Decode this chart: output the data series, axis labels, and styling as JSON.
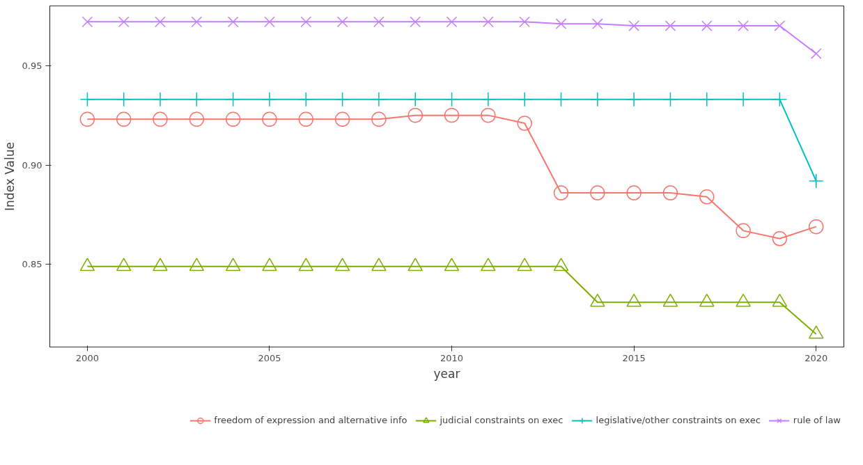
{
  "chart_data": {
    "type": "line",
    "xlabel": "year",
    "ylabel": "Index Value",
    "x": [
      2000,
      2001,
      2002,
      2003,
      2004,
      2005,
      2006,
      2007,
      2008,
      2009,
      2010,
      2011,
      2012,
      2013,
      2014,
      2015,
      2016,
      2017,
      2018,
      2019,
      2020
    ],
    "xlim": [
      1998.97,
      2020.76
    ],
    "xticks": [
      2000,
      2005,
      2010,
      2015,
      2020
    ],
    "ylim": [
      0.8085,
      0.98
    ],
    "yticks": [
      {
        "value": 0.85,
        "label": "0.85"
      },
      {
        "value": 0.9,
        "label": "0.90"
      },
      {
        "value": 0.95,
        "label": "0.95"
      }
    ],
    "grid": false,
    "legend": "bottom",
    "series": [
      {
        "name": "freedom of expression and alternative info",
        "color": "#f8766d",
        "marker": "circle",
        "values": [
          0.923,
          0.923,
          0.923,
          0.923,
          0.923,
          0.923,
          0.923,
          0.923,
          0.923,
          0.925,
          0.925,
          0.925,
          0.921,
          0.886,
          0.886,
          0.886,
          0.886,
          0.884,
          0.867,
          0.863,
          0.869
        ]
      },
      {
        "name": "judicial constraints on exec",
        "color": "#7cae00",
        "marker": "triangle",
        "values": [
          0.849,
          0.849,
          0.849,
          0.849,
          0.849,
          0.849,
          0.849,
          0.849,
          0.849,
          0.849,
          0.849,
          0.849,
          0.849,
          0.849,
          0.831,
          0.831,
          0.831,
          0.831,
          0.831,
          0.831,
          0.815
        ]
      },
      {
        "name": "legislative/other constraints on exec",
        "color": "#00bfc4",
        "marker": "cross",
        "values": [
          0.933,
          0.933,
          0.933,
          0.933,
          0.933,
          0.933,
          0.933,
          0.933,
          0.933,
          0.933,
          0.933,
          0.933,
          0.933,
          0.933,
          0.933,
          0.933,
          0.933,
          0.933,
          0.933,
          0.933,
          0.892
        ]
      },
      {
        "name": "rule of law",
        "color": "#c77cff",
        "marker": "x",
        "values": [
          0.972,
          0.972,
          0.972,
          0.972,
          0.972,
          0.972,
          0.972,
          0.972,
          0.972,
          0.972,
          0.972,
          0.972,
          0.972,
          0.971,
          0.971,
          0.97,
          0.97,
          0.97,
          0.97,
          0.97,
          0.956
        ]
      }
    ]
  }
}
